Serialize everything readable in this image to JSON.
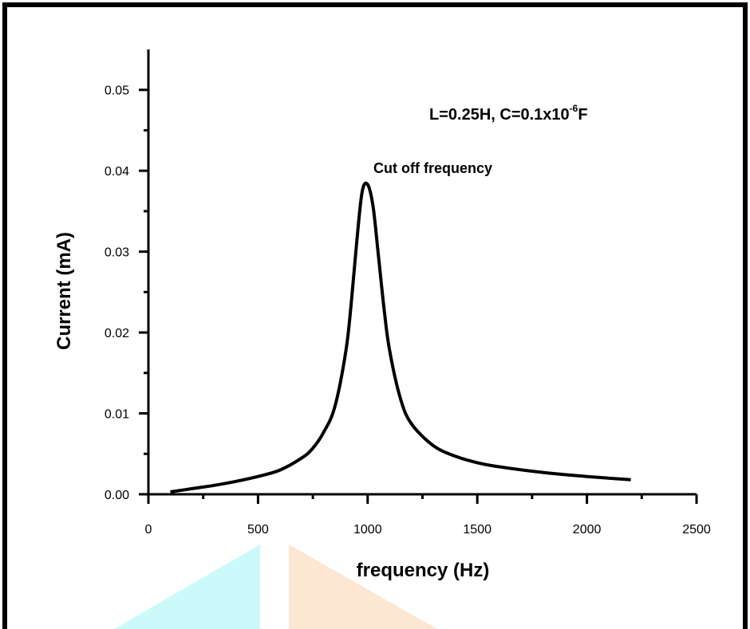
{
  "chart_data": {
    "type": "line",
    "xlabel": "frequency (Hz)",
    "ylabel": "Current (mA)",
    "xlim": [
      0,
      2500
    ],
    "ylim": [
      0,
      0.055
    ],
    "x_ticks": [
      0,
      500,
      1000,
      1500,
      2000,
      2500
    ],
    "x_tick_labels": [
      "0",
      "500",
      "1000",
      "1500",
      "2000",
      "2500"
    ],
    "y_ticks": [
      0.0,
      0.01,
      0.02,
      0.03,
      0.04,
      0.05
    ],
    "y_tick_labels": [
      "0.00",
      "0.01",
      "0.02",
      "0.03",
      "0.04",
      "0.05"
    ],
    "grid": false,
    "annotations": {
      "params": {
        "main": "L=0.25H, C=0.1x10",
        "sup": "-6",
        "tail": "F"
      },
      "peak_label": {
        "text": "Cut off frequency",
        "x": 1000,
        "y": 0.0385
      }
    },
    "series": [
      {
        "color": "#000000",
        "x": [
          100,
          200,
          300,
          400,
          500,
          600,
          700,
          750,
          800,
          850,
          900,
          925,
          950,
          975,
          1000,
          1025,
          1050,
          1075,
          1100,
          1150,
          1200,
          1300,
          1400,
          1500,
          1600,
          1800,
          2000,
          2200
        ],
        "y": [
          0.0003,
          0.0007,
          0.0011,
          0.0016,
          0.0022,
          0.003,
          0.0045,
          0.0057,
          0.0077,
          0.0108,
          0.0176,
          0.0236,
          0.0312,
          0.0374,
          0.0383,
          0.0355,
          0.0293,
          0.0229,
          0.0178,
          0.0118,
          0.0087,
          0.006,
          0.0047,
          0.0039,
          0.0034,
          0.0027,
          0.0022,
          0.0018
        ]
      }
    ]
  },
  "decor": {
    "frame_color": "#000000",
    "triangle_left_color": "#ccfafa",
    "triangle_right_color": "#fde6d2"
  }
}
